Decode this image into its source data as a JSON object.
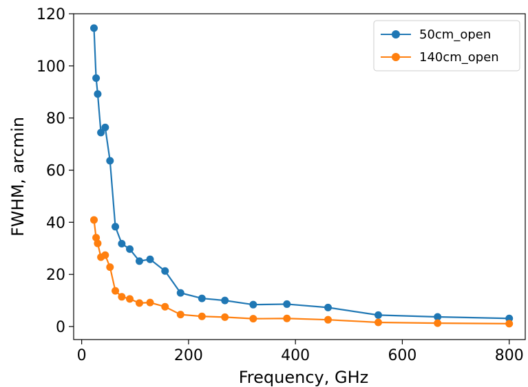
{
  "chart_data": {
    "type": "line",
    "title": "",
    "xlabel": "Frequency, GHz",
    "ylabel": "FWHM, arcmin",
    "xlim": [
      -15,
      830
    ],
    "ylim": [
      -5,
      120
    ],
    "xticks": [
      "0",
      "200",
      "400",
      "600",
      "800"
    ],
    "yticks": [
      "0",
      "20",
      "40",
      "60",
      "80",
      "100",
      "120"
    ],
    "grid": false,
    "legend": "top-right",
    "series": [
      {
        "name": "50cm_open",
        "color": "#1f77b4",
        "x": [
          23,
          27,
          30,
          36,
          44,
          53,
          63,
          75,
          90,
          108,
          128,
          156,
          185,
          225,
          268,
          321,
          384,
          461,
          555,
          666,
          800
        ],
        "y": [
          114.5,
          95.3,
          89.2,
          74.4,
          76.4,
          63.6,
          38.3,
          31.8,
          29.7,
          25.1,
          25.8,
          21.3,
          12.9,
          10.8,
          10.0,
          8.4,
          8.6,
          7.3,
          4.4,
          3.7,
          3.1
        ]
      },
      {
        "name": "140cm_open",
        "color": "#ff7f0e",
        "x": [
          23,
          27,
          30,
          36,
          44,
          53,
          63,
          75,
          90,
          108,
          128,
          156,
          185,
          225,
          268,
          321,
          384,
          461,
          555,
          666,
          800
        ],
        "y": [
          40.9,
          34.1,
          31.9,
          26.6,
          27.4,
          22.8,
          13.7,
          11.4,
          10.6,
          9.0,
          9.2,
          7.6,
          4.6,
          3.9,
          3.6,
          3.0,
          3.1,
          2.6,
          1.6,
          1.3,
          1.1
        ]
      }
    ]
  }
}
